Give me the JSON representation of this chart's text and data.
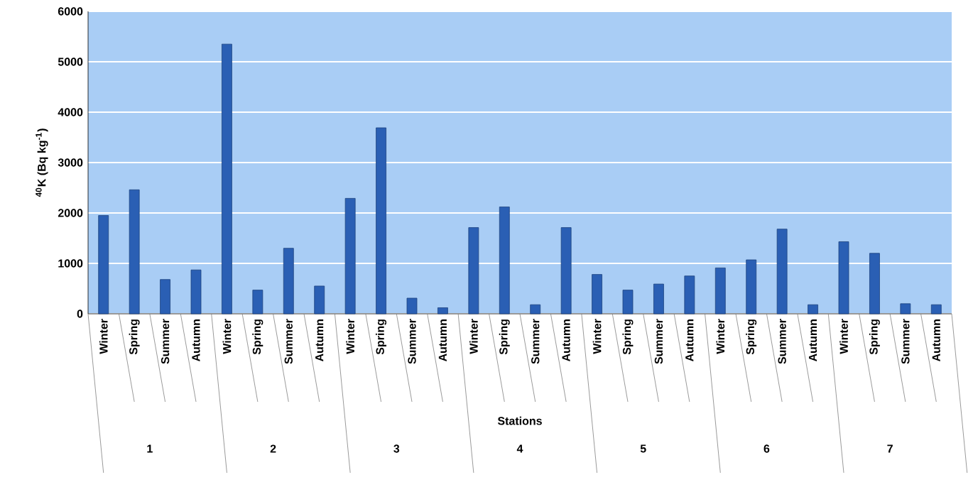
{
  "chart_data": {
    "type": "bar",
    "xlabel": "Stations",
    "ylabel": "$^{40}$K (Bq kg$^{-1}$)",
    "categories": [
      "Winter",
      "Spring",
      "Summer",
      "Autumn",
      "Winter",
      "Spring",
      "Summer",
      "Autumn",
      "Winter",
      "Spring",
      "Summer",
      "Autumn",
      "Winter",
      "Spring",
      "Summer",
      "Autumn",
      "Winter",
      "Spring",
      "Summer",
      "Autumn",
      "Winter",
      "Spring",
      "Summer",
      "Autumn",
      "Winter",
      "Spring",
      "Summer",
      "Autumn"
    ],
    "values": [
      1950,
      2460,
      680,
      870,
      5350,
      470,
      1300,
      550,
      2290,
      3690,
      310,
      120,
      1710,
      2120,
      180,
      1710,
      780,
      470,
      590,
      750,
      910,
      1070,
      1680,
      180,
      1430,
      1200,
      200,
      180
    ],
    "color": "#2a5fb4",
    "ylim": [
      0,
      6000
    ],
    "yticks": [
      0,
      1000,
      2000,
      3000,
      4000,
      5000,
      6000
    ],
    "grid": "y",
    "annotations": [
      "1",
      "2",
      "3",
      "4",
      "5",
      "6",
      "7"
    ]
  }
}
